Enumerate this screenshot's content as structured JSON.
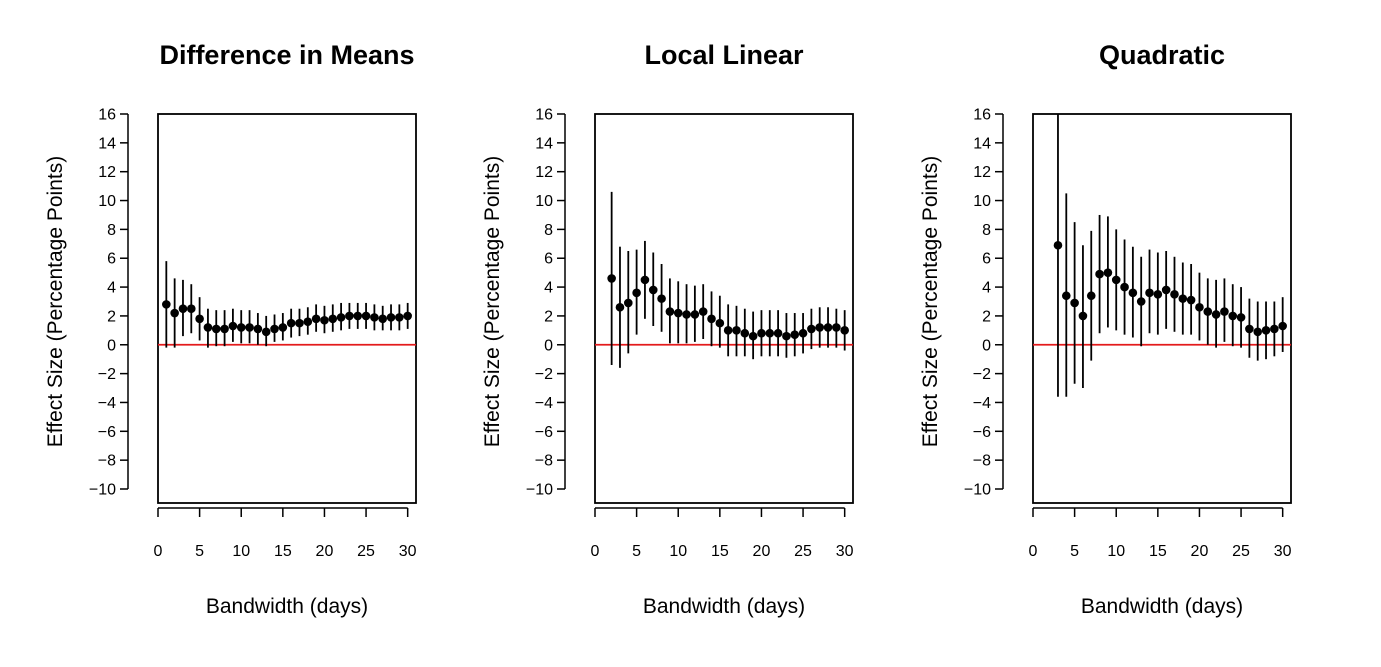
{
  "colors": {
    "points": "#000000",
    "reference_line": "#e31a1c",
    "axes": "#000000"
  },
  "chart_data": [
    {
      "type": "scatter",
      "title": "Difference in Means",
      "xlabel": "Bandwidth (days)",
      "ylabel": "Effect Size (Percentage Points)",
      "xlim": [
        0,
        31
      ],
      "ylim": [
        -11,
        16
      ],
      "xticks": [
        0,
        5,
        10,
        15,
        20,
        25,
        30
      ],
      "yticks": [
        -10,
        -8,
        -6,
        -4,
        -2,
        0,
        2,
        4,
        6,
        8,
        10,
        12,
        14,
        16
      ],
      "reference_line_y": 0,
      "series": [
        {
          "x": [
            1,
            2,
            3,
            4,
            5,
            6,
            7,
            8,
            9,
            10,
            11,
            12,
            13,
            14,
            15,
            16,
            17,
            18,
            19,
            20,
            21,
            22,
            23,
            24,
            25,
            26,
            27,
            28,
            29,
            30
          ],
          "y": [
            2.8,
            2.2,
            2.5,
            2.5,
            1.8,
            1.2,
            1.1,
            1.1,
            1.3,
            1.2,
            1.2,
            1.1,
            0.9,
            1.1,
            1.2,
            1.5,
            1.5,
            1.6,
            1.8,
            1.7,
            1.8,
            1.9,
            2.0,
            2.0,
            2.0,
            1.9,
            1.8,
            1.9,
            1.9,
            2.0
          ],
          "lower": [
            -0.2,
            -0.2,
            0.6,
            0.8,
            0.3,
            -0.2,
            -0.1,
            -0.1,
            0.2,
            0.1,
            0.1,
            0.0,
            -0.1,
            0.2,
            0.3,
            0.5,
            0.6,
            0.7,
            0.9,
            0.8,
            0.9,
            1.0,
            1.1,
            1.1,
            1.1,
            1.0,
            1.0,
            1.0,
            1.0,
            1.1
          ],
          "upper": [
            5.8,
            4.6,
            4.5,
            4.2,
            3.3,
            2.5,
            2.4,
            2.4,
            2.5,
            2.4,
            2.4,
            2.2,
            2.0,
            2.1,
            2.2,
            2.5,
            2.5,
            2.6,
            2.8,
            2.7,
            2.8,
            2.9,
            2.9,
            2.9,
            2.9,
            2.8,
            2.7,
            2.8,
            2.8,
            2.9
          ]
        }
      ]
    },
    {
      "type": "scatter",
      "title": "Local Linear",
      "xlabel": "Bandwidth (days)",
      "ylabel": "Effect Size (Percentage Points)",
      "xlim": [
        0,
        31
      ],
      "ylim": [
        -11,
        16
      ],
      "xticks": [
        0,
        5,
        10,
        15,
        20,
        25,
        30
      ],
      "yticks": [
        -10,
        -8,
        -6,
        -4,
        -2,
        0,
        2,
        4,
        6,
        8,
        10,
        12,
        14,
        16
      ],
      "reference_line_y": 0,
      "series": [
        {
          "x": [
            2,
            3,
            4,
            5,
            6,
            7,
            8,
            9,
            10,
            11,
            12,
            13,
            14,
            15,
            16,
            17,
            18,
            19,
            20,
            21,
            22,
            23,
            24,
            25,
            26,
            27,
            28,
            29,
            30
          ],
          "y": [
            4.6,
            2.6,
            2.9,
            3.6,
            4.5,
            3.8,
            3.2,
            2.3,
            2.2,
            2.1,
            2.1,
            2.3,
            1.8,
            1.5,
            1.0,
            1.0,
            0.8,
            0.6,
            0.8,
            0.8,
            0.8,
            0.6,
            0.7,
            0.8,
            1.1,
            1.2,
            1.2,
            1.2,
            1.0
          ],
          "lower": [
            -1.4,
            -1.6,
            -0.6,
            0.7,
            1.8,
            1.3,
            0.9,
            0.1,
            0.1,
            0.1,
            0.2,
            0.4,
            -0.1,
            -0.2,
            -0.8,
            -0.8,
            -0.8,
            -1.0,
            -0.8,
            -0.8,
            -0.8,
            -0.9,
            -0.8,
            -0.6,
            -0.3,
            -0.2,
            -0.2,
            -0.2,
            -0.4
          ],
          "upper": [
            10.6,
            6.8,
            6.5,
            6.6,
            7.2,
            6.4,
            5.6,
            4.6,
            4.4,
            4.2,
            4.1,
            4.2,
            3.7,
            3.4,
            2.8,
            2.7,
            2.5,
            2.3,
            2.4,
            2.4,
            2.4,
            2.2,
            2.2,
            2.2,
            2.5,
            2.6,
            2.6,
            2.5,
            2.4
          ]
        }
      ]
    },
    {
      "type": "scatter",
      "title": "Quadratic",
      "xlabel": "Bandwidth (days)",
      "ylabel": "Effect Size (Percentage Points)",
      "xlim": [
        0,
        31
      ],
      "ylim": [
        -11,
        16
      ],
      "xticks": [
        0,
        5,
        10,
        15,
        20,
        25,
        30
      ],
      "yticks": [
        -10,
        -8,
        -6,
        -4,
        -2,
        0,
        2,
        4,
        6,
        8,
        10,
        12,
        14,
        16
      ],
      "reference_line_y": 0,
      "series": [
        {
          "x": [
            3,
            4,
            5,
            6,
            7,
            8,
            9,
            10,
            11,
            12,
            13,
            14,
            15,
            16,
            17,
            18,
            19,
            20,
            21,
            22,
            23,
            24,
            25,
            26,
            27,
            28,
            29,
            30
          ],
          "y": [
            6.9,
            3.4,
            2.9,
            2.0,
            3.4,
            4.9,
            5.0,
            4.5,
            4.0,
            3.6,
            3.0,
            3.6,
            3.5,
            3.8,
            3.5,
            3.2,
            3.1,
            2.6,
            2.3,
            2.1,
            2.3,
            2.0,
            1.9,
            1.1,
            0.9,
            1.0,
            1.1,
            1.3
          ],
          "lower": [
            -3.6,
            -3.6,
            -2.7,
            -3.0,
            -1.1,
            0.8,
            1.2,
            1.0,
            0.7,
            0.5,
            -0.1,
            0.8,
            0.7,
            1.1,
            0.9,
            0.7,
            0.7,
            0.3,
            0.0,
            -0.2,
            0.2,
            -0.1,
            -0.2,
            -0.9,
            -1.1,
            -1.0,
            -0.8,
            -0.5
          ],
          "upper": [
            16.5,
            10.5,
            8.5,
            6.9,
            7.9,
            9.0,
            8.9,
            8.0,
            7.3,
            6.8,
            6.1,
            6.6,
            6.4,
            6.5,
            6.1,
            5.7,
            5.6,
            5.0,
            4.6,
            4.5,
            4.6,
            4.2,
            4.0,
            3.2,
            3.0,
            3.0,
            3.0,
            3.3
          ]
        }
      ]
    }
  ]
}
